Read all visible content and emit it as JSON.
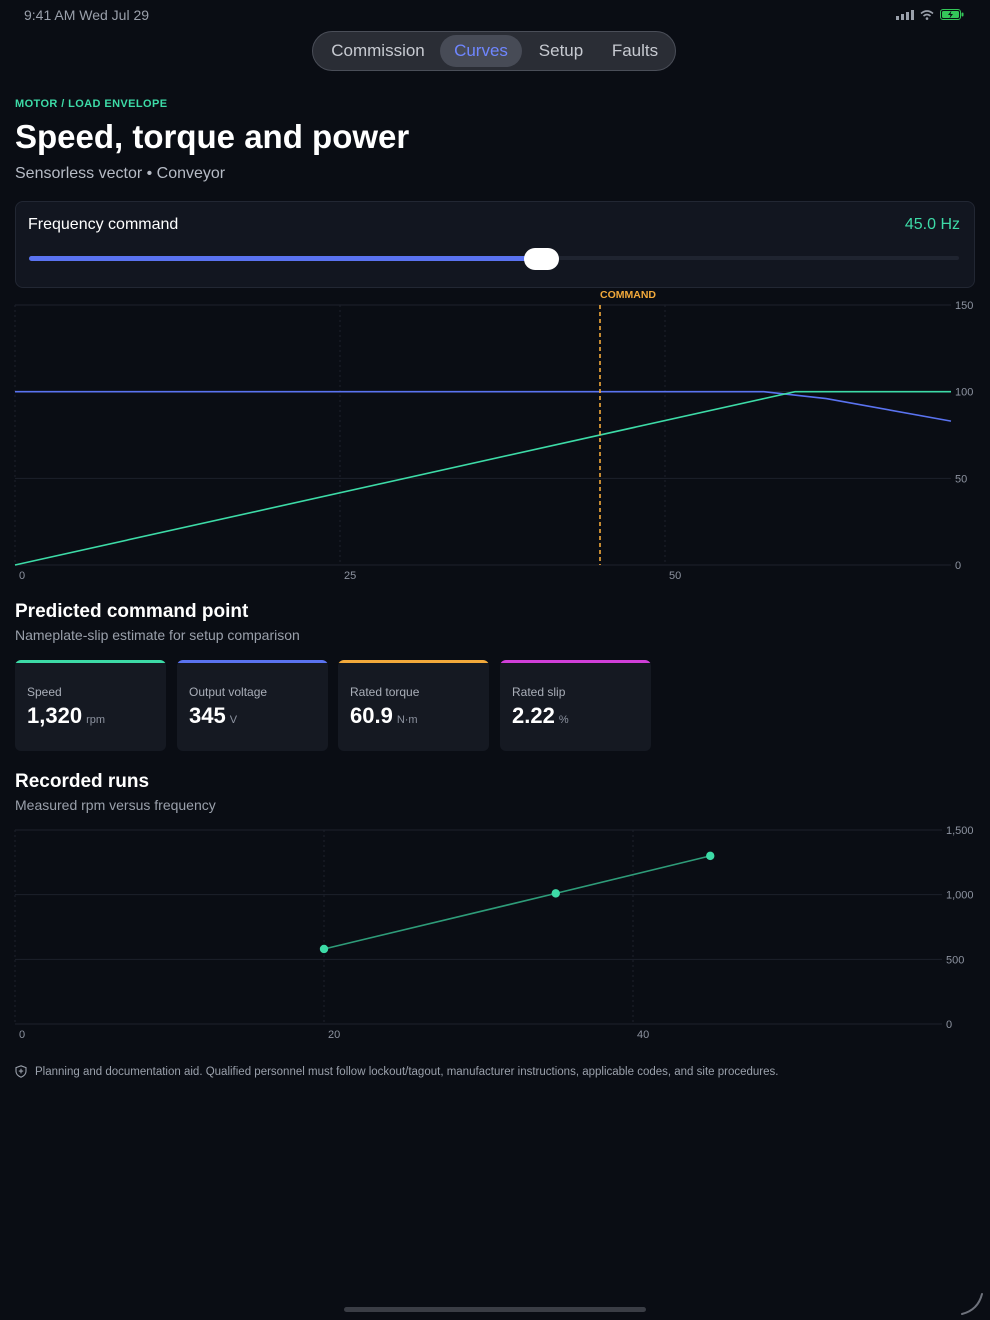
{
  "status_bar": {
    "time_date": "9:41 AM   Wed Jul 29"
  },
  "tabs": [
    {
      "label": "Commission",
      "active": false
    },
    {
      "label": "Curves",
      "active": true
    },
    {
      "label": "Setup",
      "active": false
    },
    {
      "label": "Faults",
      "active": false
    }
  ],
  "header": {
    "eyebrow": "MOTOR / LOAD ENVELOPE",
    "title": "Speed, torque and power",
    "subtitle": "Sensorless vector • Conveyor"
  },
  "frequency": {
    "label": "Frequency command",
    "value_text": "45.0 Hz",
    "fraction": 0.55
  },
  "chart_data": [
    {
      "type": "line",
      "x_ticks": [
        "0",
        "25",
        "50"
      ],
      "y_ticks": [
        "0",
        "50",
        "100",
        "150"
      ],
      "xlim": [
        0,
        72
      ],
      "ylim": [
        0,
        150
      ],
      "grid": true,
      "series": [
        {
          "color": "#5a73f0",
          "x": [
            0,
            57.6,
            62.4,
            72
          ],
          "y": [
            100,
            100,
            96,
            83
          ]
        },
        {
          "color": "#3ddba7",
          "x": [
            0,
            57.6,
            60,
            72
          ],
          "y": [
            0,
            96,
            100,
            100
          ]
        }
      ],
      "marker": {
        "x": 45,
        "label": "COMMAND",
        "color": "#f2a93b"
      }
    },
    {
      "type": "line",
      "x_ticks": [
        "0",
        "20",
        "40"
      ],
      "y_ticks": [
        "0",
        "500",
        "1,000",
        "1,500"
      ],
      "xlim": [
        0,
        60
      ],
      "ylim": [
        0,
        1500
      ],
      "grid": true,
      "series": [
        {
          "color": "#3ddba7",
          "x": [
            20,
            35,
            45
          ],
          "y": [
            580,
            1010,
            1300
          ]
        }
      ]
    }
  ],
  "predicted": {
    "title": "Predicted command point",
    "subtitle": "Nameplate-slip estimate for setup comparison",
    "kpis": [
      {
        "label": "Speed",
        "value": "1,320",
        "unit": "rpm",
        "color": "#3ddba7"
      },
      {
        "label": "Output voltage",
        "value": "345",
        "unit": "V",
        "color": "#5a73f0"
      },
      {
        "label": "Rated torque",
        "value": "60.9",
        "unit": "N·m",
        "color": "#f2a93b"
      },
      {
        "label": "Rated slip",
        "value": "2.22",
        "unit": "%",
        "color": "#d03fd9"
      }
    ]
  },
  "recorded": {
    "title": "Recorded runs",
    "subtitle": "Measured rpm versus frequency"
  },
  "disclaimer": "Planning and documentation aid. Qualified personnel must follow lockout/tagout, manufacturer instructions, applicable codes, and site procedures."
}
